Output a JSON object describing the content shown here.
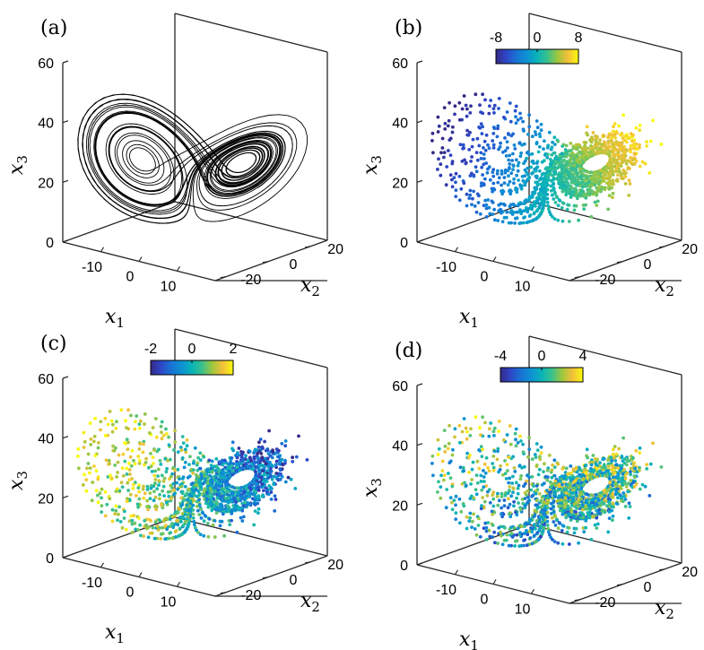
{
  "chart_data": [
    {
      "type": "scatter",
      "panel": "(a)",
      "title": "",
      "xlabel": "x_1",
      "ylabel": "x_2",
      "zlabel": "x_3",
      "xlabel_base": "x",
      "xlabel_sub": "1",
      "ylabel_base": "x",
      "ylabel_sub": "2",
      "zlabel_base": "x",
      "zlabel_sub": "3",
      "x_ticks": [
        -10,
        0,
        10
      ],
      "x_tick_labels": [
        "-10",
        "0",
        "10"
      ],
      "y_ticks": [
        -20,
        0,
        20
      ],
      "y_tick_labels": [
        "-20",
        "0",
        "20"
      ],
      "z_ticks": [
        0,
        20,
        40,
        60
      ],
      "z_tick_labels": [
        "0",
        "20",
        "40",
        "60"
      ],
      "xlim": [
        -20,
        20
      ],
      "ylim": [
        -25,
        28
      ],
      "zlim": [
        0,
        60
      ],
      "style": "line",
      "color": "#000000",
      "colorbar": null
    },
    {
      "type": "scatter",
      "panel": "(b)",
      "title": "",
      "xlabel": "x_1",
      "ylabel": "x_2",
      "zlabel": "x_3",
      "xlabel_base": "x",
      "xlabel_sub": "1",
      "ylabel_base": "x",
      "ylabel_sub": "2",
      "zlabel_base": "x",
      "zlabel_sub": "3",
      "x_ticks": [
        -10,
        0,
        10
      ],
      "x_tick_labels": [
        "-10",
        "0",
        "10"
      ],
      "y_ticks": [
        -20,
        0,
        20
      ],
      "y_tick_labels": [
        "-20",
        "0",
        "20"
      ],
      "z_ticks": [
        0,
        20,
        40,
        60
      ],
      "z_tick_labels": [
        "0",
        "20",
        "40",
        "60"
      ],
      "xlim": [
        -20,
        20
      ],
      "ylim": [
        -25,
        28
      ],
      "zlim": [
        0,
        60
      ],
      "style": "points",
      "colormap": "parula",
      "colorbar": {
        "range": [
          -8,
          8
        ],
        "ticks": [
          -8,
          0,
          8
        ],
        "tick_labels": [
          "-8",
          "0",
          "8"
        ],
        "orientation": "horizontal",
        "location": "top"
      }
    },
    {
      "type": "scatter",
      "panel": "(c)",
      "title": "",
      "xlabel": "x_1",
      "ylabel": "x_2",
      "zlabel": "x_3",
      "xlabel_base": "x",
      "xlabel_sub": "1",
      "ylabel_base": "x",
      "ylabel_sub": "2",
      "zlabel_base": "x",
      "zlabel_sub": "3",
      "x_ticks": [
        -10,
        0,
        10
      ],
      "x_tick_labels": [
        "-10",
        "0",
        "10"
      ],
      "y_ticks": [
        -20,
        0,
        20
      ],
      "y_tick_labels": [
        "-20",
        "0",
        "20"
      ],
      "z_ticks": [
        0,
        20,
        40,
        60
      ],
      "z_tick_labels": [
        "0",
        "20",
        "40",
        "60"
      ],
      "xlim": [
        -20,
        20
      ],
      "ylim": [
        -25,
        28
      ],
      "zlim": [
        0,
        60
      ],
      "style": "points",
      "colormap": "parula",
      "colorbar": {
        "range": [
          -2,
          2
        ],
        "ticks": [
          -2,
          0,
          2
        ],
        "tick_labels": [
          "-2",
          "0",
          "2"
        ],
        "orientation": "horizontal",
        "location": "top"
      }
    },
    {
      "type": "scatter",
      "panel": "(d)",
      "title": "",
      "xlabel": "x_1",
      "ylabel": "x_2",
      "zlabel": "x_3",
      "xlabel_base": "x",
      "xlabel_sub": "1",
      "ylabel_base": "x",
      "ylabel_sub": "2",
      "zlabel_base": "x",
      "zlabel_sub": "3",
      "x_ticks": [
        -10,
        0,
        10
      ],
      "x_tick_labels": [
        "-10",
        "0",
        "10"
      ],
      "y_ticks": [
        -20,
        0,
        20
      ],
      "y_tick_labels": [
        "-20",
        "0",
        "20"
      ],
      "z_ticks": [
        0,
        20,
        40,
        60
      ],
      "z_tick_labels": [
        "0",
        "20",
        "40",
        "60"
      ],
      "xlim": [
        -20,
        20
      ],
      "ylim": [
        -25,
        28
      ],
      "zlim": [
        0,
        60
      ],
      "style": "points",
      "colormap": "parula",
      "colorbar": {
        "range": [
          -4,
          4
        ],
        "ticks": [
          -4,
          0,
          4
        ],
        "tick_labels": [
          "-4",
          "0",
          "4"
        ],
        "orientation": "horizontal",
        "location": "top"
      }
    }
  ]
}
